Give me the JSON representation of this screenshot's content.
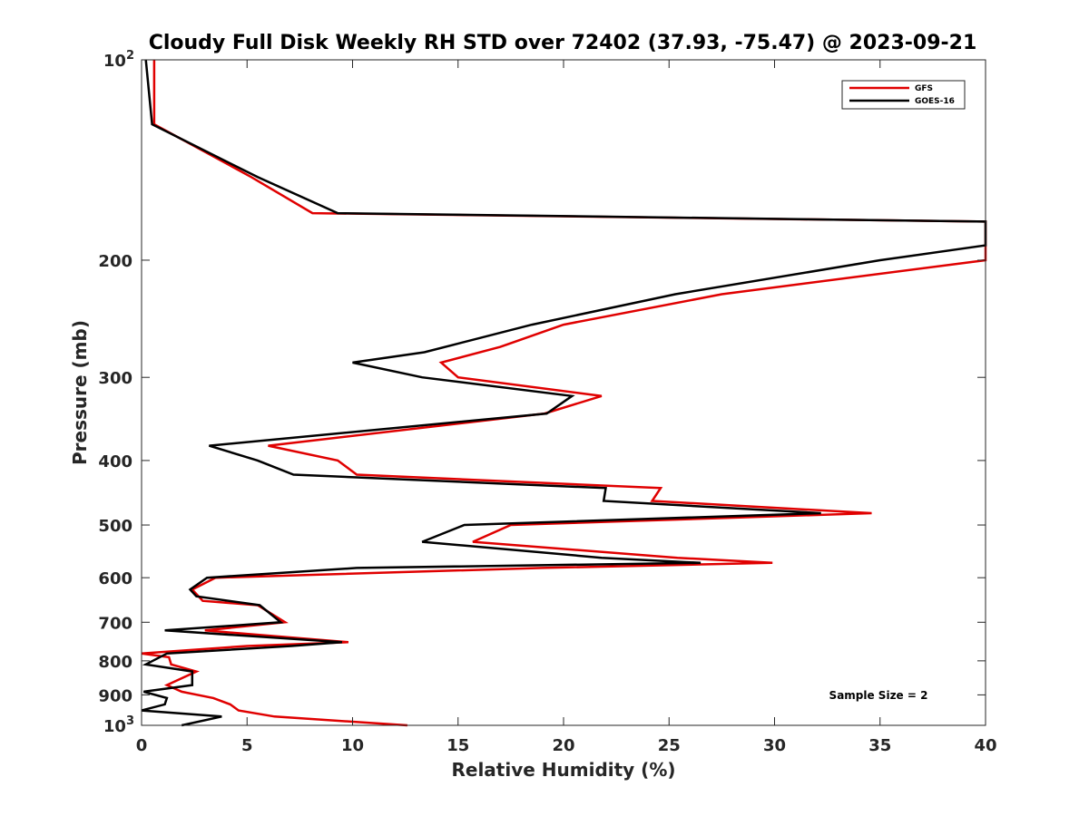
{
  "chart_data": {
    "type": "line",
    "title": "Cloudy Full Disk Weekly RH STD over 72402 (37.93, -75.47) @ 2023-09-21",
    "xlabel": "Relative Humidity (%)",
    "ylabel": "Pressure (mb)",
    "xlim": [
      0,
      40
    ],
    "ylim": [
      100,
      1000
    ],
    "y_scale": "log",
    "y_reversed": true,
    "x_ticks": [
      0,
      5,
      10,
      15,
      20,
      25,
      30,
      35,
      40
    ],
    "y_ticks": [
      {
        "value": 100,
        "label": "10",
        "sup": "2"
      },
      {
        "value": 200,
        "label": "200"
      },
      {
        "value": 300,
        "label": "300"
      },
      {
        "value": 400,
        "label": "400"
      },
      {
        "value": 500,
        "label": "500"
      },
      {
        "value": 600,
        "label": "600"
      },
      {
        "value": 700,
        "label": "700"
      },
      {
        "value": 800,
        "label": "800"
      },
      {
        "value": 900,
        "label": "900"
      },
      {
        "value": 1000,
        "label": "10",
        "sup": "3"
      }
    ],
    "grid": false,
    "legend_position": "top-right",
    "annotation": "Sample Size = 2",
    "series": [
      {
        "name": "GFS",
        "color": "#e00000",
        "points": [
          [
            0.6,
            100
          ],
          [
            0.6,
            125
          ],
          [
            5.2,
            150
          ],
          [
            8.1,
            170
          ],
          [
            40,
            175
          ],
          [
            40,
            200
          ],
          [
            27.5,
            225
          ],
          [
            20.0,
            250
          ],
          [
            17.0,
            270
          ],
          [
            14.2,
            285
          ],
          [
            15.0,
            300
          ],
          [
            21.8,
            320
          ],
          [
            19.1,
            340
          ],
          [
            6.0,
            380
          ],
          [
            9.3,
            400
          ],
          [
            10.2,
            420
          ],
          [
            24.6,
            440
          ],
          [
            24.2,
            460
          ],
          [
            34.6,
            480
          ],
          [
            17.5,
            500
          ],
          [
            15.7,
            530
          ],
          [
            25.4,
            560
          ],
          [
            29.9,
            570
          ],
          [
            19.0,
            580
          ],
          [
            3.5,
            600
          ],
          [
            2.4,
            625
          ],
          [
            2.9,
            650
          ],
          [
            5.5,
            660
          ],
          [
            6.8,
            700
          ],
          [
            3.0,
            720
          ],
          [
            9.8,
            750
          ],
          [
            5.0,
            760
          ],
          [
            0,
            780
          ],
          [
            1.3,
            790
          ],
          [
            1.4,
            810
          ],
          [
            2.6,
            830
          ],
          [
            1.2,
            870
          ],
          [
            1.9,
            890
          ],
          [
            3.4,
            910
          ],
          [
            4.2,
            930
          ],
          [
            4.6,
            950
          ],
          [
            6.3,
            970
          ],
          [
            12.6,
            1000
          ]
        ]
      },
      {
        "name": "GOES-16",
        "color": "#000000",
        "points": [
          [
            0.2,
            100
          ],
          [
            0.5,
            125
          ],
          [
            5.5,
            150
          ],
          [
            9.3,
            170
          ],
          [
            40,
            175
          ],
          [
            40,
            190
          ],
          [
            35.0,
            200
          ],
          [
            25.3,
            225
          ],
          [
            18.5,
            250
          ],
          [
            13.4,
            275
          ],
          [
            10.0,
            285
          ],
          [
            13.3,
            300
          ],
          [
            20.4,
            320
          ],
          [
            19.2,
            340
          ],
          [
            3.2,
            380
          ],
          [
            5.5,
            400
          ],
          [
            7.2,
            420
          ],
          [
            22.0,
            440
          ],
          [
            21.9,
            460
          ],
          [
            32.2,
            480
          ],
          [
            15.3,
            500
          ],
          [
            13.3,
            530
          ],
          [
            21.8,
            560
          ],
          [
            26.5,
            570
          ],
          [
            10.2,
            580
          ],
          [
            3.1,
            600
          ],
          [
            2.3,
            625
          ],
          [
            2.6,
            640
          ],
          [
            5.6,
            660
          ],
          [
            6.6,
            700
          ],
          [
            1.1,
            720
          ],
          [
            9.5,
            750
          ],
          [
            7.1,
            760
          ],
          [
            1.2,
            780
          ],
          [
            0.2,
            810
          ],
          [
            2.4,
            830
          ],
          [
            2.4,
            870
          ],
          [
            0.1,
            890
          ],
          [
            1.2,
            910
          ],
          [
            1.1,
            930
          ],
          [
            0,
            950
          ],
          [
            3.8,
            970
          ],
          [
            1.9,
            1000
          ]
        ]
      }
    ]
  }
}
